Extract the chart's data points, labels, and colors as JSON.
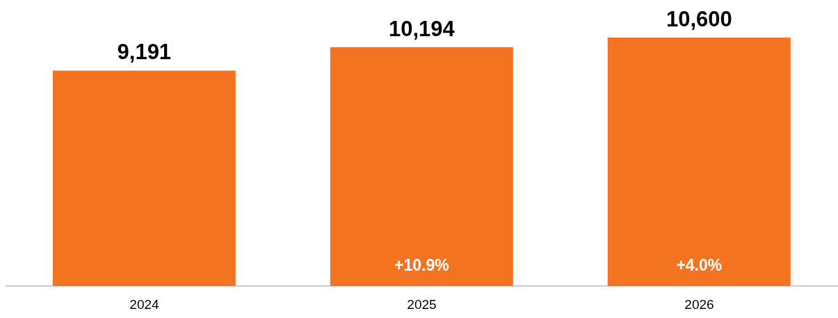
{
  "chart_data": {
    "type": "bar",
    "categories": [
      "2024",
      "2025",
      "2026"
    ],
    "values": [
      9191,
      10194,
      10600
    ],
    "color": "#f37321",
    "value_labels": [
      "9,191",
      "10,194",
      "10,600"
    ],
    "annotations": [
      "+10.9%",
      "+4.0%"
    ]
  }
}
